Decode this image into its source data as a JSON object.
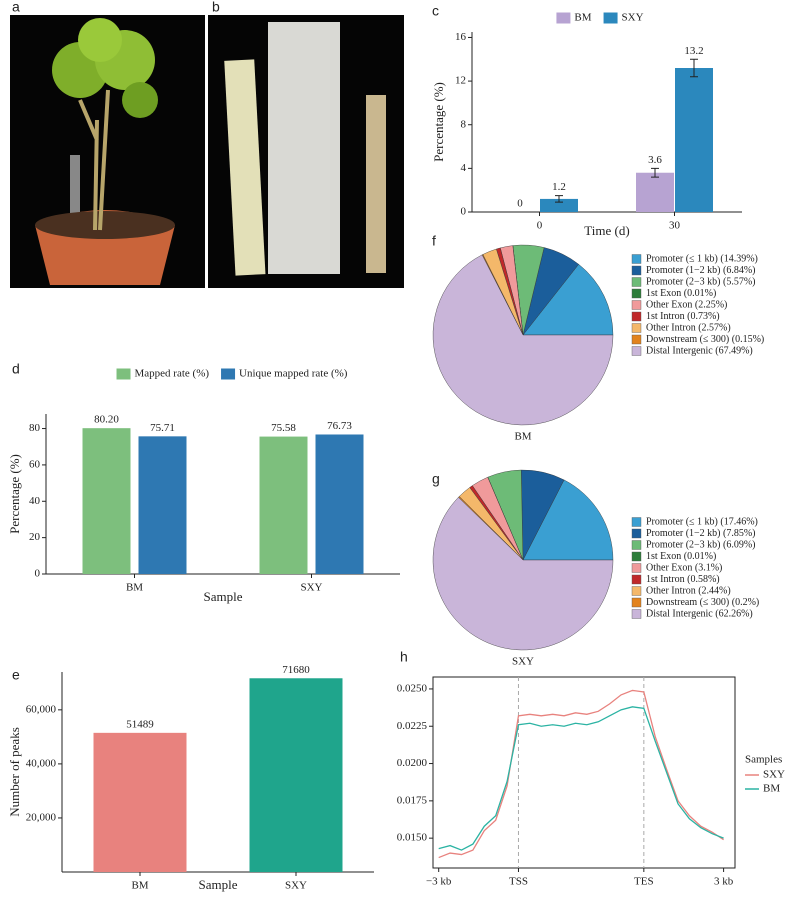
{
  "photos": [
    {
      "panel": "a"
    },
    {
      "panel": "b"
    }
  ],
  "chart_data": [
    {
      "type": "bar",
      "panel": "c",
      "categories": [
        "0",
        "30"
      ],
      "series": [
        {
          "name": "BM",
          "color": "#b7a3d2",
          "values": [
            0,
            3.6
          ],
          "errors": [
            0,
            0.4
          ]
        },
        {
          "name": "SXY",
          "color": "#2b88bd",
          "values": [
            1.2,
            13.2
          ],
          "errors": [
            0.3,
            0.8
          ]
        }
      ],
      "ylim": [
        0,
        16.5
      ],
      "yticks": [
        0,
        4,
        8,
        12,
        16
      ],
      "xlabel": "Time (d)",
      "ylabel": "Percentage (%)"
    },
    {
      "type": "bar",
      "panel": "d",
      "categories": [
        "BM",
        "SXY"
      ],
      "series": [
        {
          "name": "Mapped rate (%)",
          "color": "#7dbf7d",
          "values": [
            80.2,
            75.58
          ],
          "value_labels": [
            "80.20",
            "75.58"
          ]
        },
        {
          "name": "Unique mapped rate (%)",
          "color": "#2e78b2",
          "values": [
            75.71,
            76.73
          ],
          "value_labels": [
            "75.71",
            "76.73"
          ]
        }
      ],
      "ylim": [
        0,
        88
      ],
      "yticks": [
        0,
        20,
        40,
        60,
        80
      ],
      "xlabel": "Sample",
      "ylabel": "Percentage (%)"
    },
    {
      "type": "bar",
      "panel": "e",
      "categories": [
        "BM",
        "SXY"
      ],
      "values": [
        51489,
        71680
      ],
      "colors": [
        "#e8827e",
        "#1fa58c"
      ],
      "ylim": [
        0,
        74000
      ],
      "yticks": [
        {
          "value": 20000,
          "label": "20,000"
        },
        {
          "value": 40000,
          "label": "40,000"
        },
        {
          "value": 60000,
          "label": "60,000"
        }
      ],
      "xlabel": "Sample",
      "ylabel": "Number of peaks"
    },
    {
      "type": "pie",
      "panel": "f",
      "title": "BM",
      "categories": [
        "Promoter (≤ 1 kb) (14.39%)",
        "Promoter (1−2 kb) (6.84%)",
        "Promoter (2−3 kb) (5.57%)",
        "1st Exon (0.01%)",
        "Other Exon (2.25%)",
        "1st Intron (0.73%)",
        "Other Intron (2.57%)",
        "Downstream (≤ 300) (0.15%)",
        "Distal Intergenic (67.49%)"
      ],
      "values": [
        14.39,
        6.84,
        5.57,
        0.01,
        2.25,
        0.73,
        2.57,
        0.15,
        67.49
      ],
      "colors": [
        "#3a9fd2",
        "#1b5e9b",
        "#6dbb77",
        "#2d7d3a",
        "#f09a9b",
        "#c0282a",
        "#f4b86a",
        "#e2831d",
        "#c9b5d9"
      ]
    },
    {
      "type": "pie",
      "panel": "g",
      "title": "SXY",
      "categories": [
        "Promoter (≤ 1 kb) (17.46%)",
        "Promoter (1−2 kb) (7.85%)",
        "Promoter (2−3 kb) (6.09%)",
        "1st Exon (0.01%)",
        "Other Exon (3.1%)",
        "1st Intron (0.58%)",
        "Other Intron (2.44%)",
        "Downstream (≤ 300) (0.2%)",
        "Distal Intergenic (62.26%)"
      ],
      "values": [
        17.46,
        7.85,
        6.09,
        0.01,
        3.1,
        0.58,
        2.44,
        0.2,
        62.26
      ],
      "colors": [
        "#3a9fd2",
        "#1b5e9b",
        "#6dbb77",
        "#2d7d3a",
        "#f09a9b",
        "#c0282a",
        "#f4b86a",
        "#e2831d",
        "#c9b5d9"
      ]
    },
    {
      "type": "line",
      "panel": "h",
      "legend_title": "Samples",
      "x": [
        0,
        4,
        8,
        12,
        16,
        20,
        24,
        28,
        32,
        36,
        40,
        44,
        48,
        52,
        56,
        60,
        64,
        68,
        72,
        76,
        80,
        84,
        88,
        92,
        96,
        100
      ],
      "series": [
        {
          "name": "SXY",
          "color": "#e8827e",
          "values": [
            0.0137,
            0.014,
            0.0139,
            0.0142,
            0.0155,
            0.0162,
            0.0185,
            0.0232,
            0.0233,
            0.0232,
            0.0233,
            0.0232,
            0.0234,
            0.0233,
            0.0235,
            0.024,
            0.0246,
            0.0249,
            0.0248,
            0.0218,
            0.0196,
            0.0175,
            0.0165,
            0.0158,
            0.0154,
            0.0149
          ]
        },
        {
          "name": "BM",
          "color": "#2bb3a3",
          "values": [
            0.0143,
            0.0145,
            0.0142,
            0.0146,
            0.0158,
            0.0165,
            0.0188,
            0.0226,
            0.0227,
            0.0225,
            0.0226,
            0.0225,
            0.0227,
            0.0226,
            0.0228,
            0.0232,
            0.0236,
            0.0238,
            0.0237,
            0.0215,
            0.0194,
            0.0173,
            0.0163,
            0.0157,
            0.0153,
            0.015
          ]
        }
      ],
      "xlim": [
        -2,
        104
      ],
      "xticks": [
        {
          "value": 0,
          "label": "−3 kb"
        },
        {
          "value": 28,
          "label": "TSS"
        },
        {
          "value": 72,
          "label": "TES"
        },
        {
          "value": 100,
          "label": "3 kb"
        }
      ],
      "ylim": [
        0.013,
        0.0258
      ],
      "yticks": [
        {
          "value": 0.015,
          "label": "0.0150"
        },
        {
          "value": 0.0175,
          "label": "0.0175"
        },
        {
          "value": 0.02,
          "label": "0.0200"
        },
        {
          "value": 0.0225,
          "label": "0.0225"
        },
        {
          "value": 0.025,
          "label": "0.0250"
        }
      ]
    }
  ]
}
